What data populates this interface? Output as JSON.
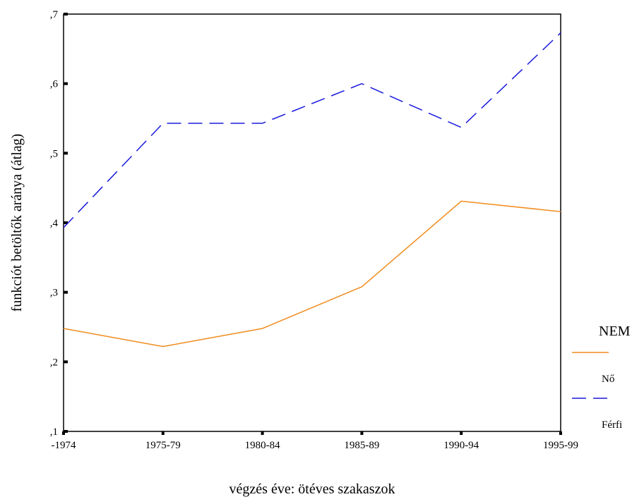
{
  "chart_data": {
    "type": "line",
    "categories": [
      "-1974",
      "1975-79",
      "1980-84",
      "1985-89",
      "1990-94",
      "1995-99"
    ],
    "series": [
      {
        "name": "Nő",
        "values": [
          0.248,
          0.222,
          0.248,
          0.308,
          0.431,
          0.416
        ],
        "color": "#f08c1e",
        "dash": "solid"
      },
      {
        "name": "Férfi",
        "values": [
          0.393,
          0.543,
          0.543,
          0.6,
          0.537,
          0.673
        ],
        "color": "#1a1adc",
        "dash": "dashed"
      }
    ],
    "xlabel": "végzés éve: ötéves szakaszok",
    "ylabel": "funkciót betöltők aránya (átlag)",
    "ylim": [
      0.1,
      0.7
    ],
    "yticks": [
      0.1,
      0.2,
      0.3,
      0.4,
      0.5,
      0.6,
      0.7
    ],
    "ytick_labels": [
      ",1",
      ",2",
      ",3",
      ",4",
      ",5",
      ",6",
      ",7"
    ],
    "legend": {
      "title": "NEM",
      "position": "right"
    },
    "grid": false
  }
}
